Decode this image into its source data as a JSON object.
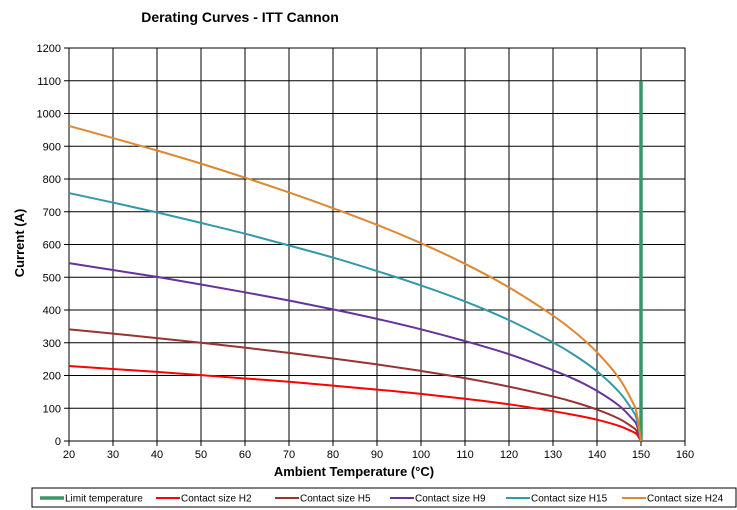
{
  "chart_data": {
    "type": "line",
    "title": "Derating Curves - ITT Cannon",
    "xlabel": "Ambient Temperature (°C)",
    "ylabel": "Current (A)",
    "xlim": [
      20,
      160
    ],
    "ylim": [
      0,
      1200
    ],
    "xticks": [
      20,
      30,
      40,
      50,
      60,
      70,
      80,
      90,
      100,
      110,
      120,
      130,
      140,
      150,
      160
    ],
    "yticks": [
      0,
      100,
      200,
      300,
      400,
      500,
      600,
      700,
      800,
      900,
      1000,
      1100,
      1200
    ],
    "grid": true,
    "legend_position": "bottom",
    "series": [
      {
        "name": "Limit temperature",
        "color": "#339966",
        "points": [
          [
            150,
            0
          ],
          [
            150,
            1100
          ]
        ]
      },
      {
        "name": "Contact size H2",
        "color": "#ff0000",
        "points": [
          [
            20,
            229
          ],
          [
            30,
            220
          ],
          [
            40,
            211
          ],
          [
            50,
            201
          ],
          [
            60,
            191
          ],
          [
            70,
            181
          ],
          [
            80,
            169
          ],
          [
            90,
            157
          ],
          [
            100,
            144
          ],
          [
            110,
            129
          ],
          [
            120,
            112
          ],
          [
            130,
            91
          ],
          [
            135,
            79
          ],
          [
            140,
            65
          ],
          [
            145,
            46
          ],
          [
            148,
            29
          ],
          [
            149,
            21
          ],
          [
            150,
            0
          ]
        ]
      },
      {
        "name": "Contact size H5",
        "color": "#993333",
        "points": [
          [
            20,
            341
          ],
          [
            30,
            328
          ],
          [
            40,
            314
          ],
          [
            50,
            300
          ],
          [
            60,
            285
          ],
          [
            70,
            269
          ],
          [
            80,
            252
          ],
          [
            90,
            234
          ],
          [
            100,
            214
          ],
          [
            110,
            192
          ],
          [
            120,
            166
          ],
          [
            130,
            136
          ],
          [
            135,
            118
          ],
          [
            140,
            96
          ],
          [
            145,
            68
          ],
          [
            148,
            43
          ],
          [
            149,
            31
          ],
          [
            150,
            0
          ]
        ]
      },
      {
        "name": "Contact size H9",
        "color": "#663399",
        "points": [
          [
            20,
            543
          ],
          [
            30,
            522
          ],
          [
            40,
            501
          ],
          [
            50,
            478
          ],
          [
            60,
            454
          ],
          [
            70,
            429
          ],
          [
            80,
            402
          ],
          [
            90,
            373
          ],
          [
            100,
            341
          ],
          [
            110,
            305
          ],
          [
            120,
            265
          ],
          [
            130,
            216
          ],
          [
            135,
            188
          ],
          [
            140,
            153
          ],
          [
            145,
            108
          ],
          [
            148,
            68
          ],
          [
            149,
            50
          ],
          [
            150,
            0
          ]
        ]
      },
      {
        "name": "Contact size H15",
        "color": "#3399aa",
        "points": [
          [
            20,
            757
          ],
          [
            30,
            728
          ],
          [
            40,
            698
          ],
          [
            50,
            666
          ],
          [
            60,
            633
          ],
          [
            70,
            597
          ],
          [
            80,
            560
          ],
          [
            90,
            519
          ],
          [
            100,
            475
          ],
          [
            110,
            426
          ],
          [
            120,
            369
          ],
          [
            130,
            301
          ],
          [
            135,
            261
          ],
          [
            140,
            213
          ],
          [
            145,
            150
          ],
          [
            148,
            95
          ],
          [
            149,
            67
          ],
          [
            150,
            0
          ]
        ]
      },
      {
        "name": "Contact size H24",
        "color": "#dd8833",
        "points": [
          [
            20,
            962
          ],
          [
            30,
            925
          ],
          [
            40,
            887
          ],
          [
            50,
            847
          ],
          [
            60,
            804
          ],
          [
            70,
            759
          ],
          [
            80,
            711
          ],
          [
            90,
            660
          ],
          [
            100,
            604
          ],
          [
            110,
            541
          ],
          [
            120,
            469
          ],
          [
            130,
            383
          ],
          [
            135,
            332
          ],
          [
            140,
            271
          ],
          [
            145,
            192
          ],
          [
            148,
            121
          ],
          [
            149,
            86
          ],
          [
            150,
            0
          ]
        ]
      }
    ]
  }
}
